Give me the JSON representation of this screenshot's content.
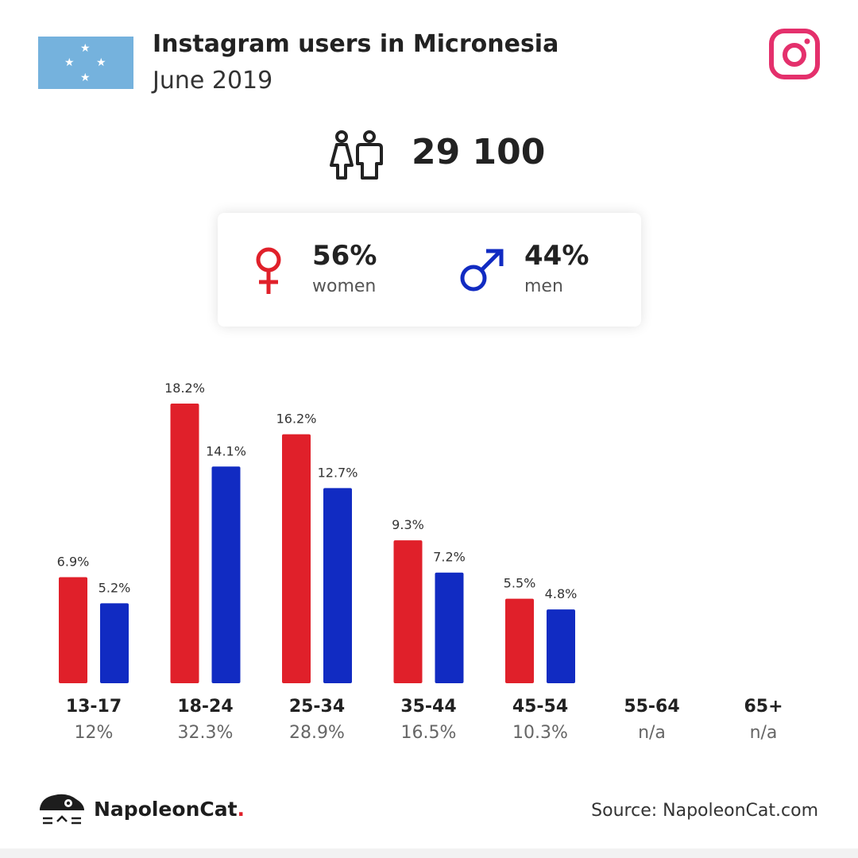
{
  "header": {
    "title": "Instagram users in Micronesia",
    "subtitle": "June 2019"
  },
  "flag": {
    "background_color": "#75b2dd",
    "star_color": "#ffffff",
    "star_glyph": "★"
  },
  "icons": {
    "instagram": "instagram-icon",
    "users": "users-icon",
    "female": "female-symbol-icon",
    "male": "male-symbol-icon",
    "brand": "napoleoncat-logo-icon"
  },
  "colors": {
    "women": "#e0202a",
    "men": "#112bc2",
    "instagram": "#e4306c"
  },
  "summary": {
    "total_users": "29 100",
    "women_pct": "56%",
    "women_label": "women",
    "men_pct": "44%",
    "men_label": "men"
  },
  "chart_data": {
    "type": "bar",
    "categories": [
      "13-17",
      "18-24",
      "25-34",
      "35-44",
      "45-54",
      "55-64",
      "65+"
    ],
    "series": [
      {
        "values": [
          6.9,
          18.2,
          16.2,
          9.3,
          5.5,
          null,
          null
        ],
        "labels": [
          "6.9%",
          "18.2%",
          "16.2%",
          "9.3%",
          "5.5%",
          "",
          ""
        ],
        "color": "#e0202a"
      },
      {
        "values": [
          5.2,
          14.1,
          12.7,
          7.2,
          4.8,
          null,
          null
        ],
        "labels": [
          "5.2%",
          "14.1%",
          "12.7%",
          "7.2%",
          "4.8%",
          "",
          ""
        ],
        "color": "#112bc2"
      }
    ],
    "group_totals": [
      "12%",
      "32.3%",
      "28.9%",
      "16.5%",
      "10.3%",
      "n/a",
      "n/a"
    ],
    "ylim": [
      0,
      18.2
    ],
    "grid": false
  },
  "footer": {
    "brand_name": "NapoleonCat",
    "brand_dot": ".",
    "source": "Source: NapoleonCat.com"
  }
}
